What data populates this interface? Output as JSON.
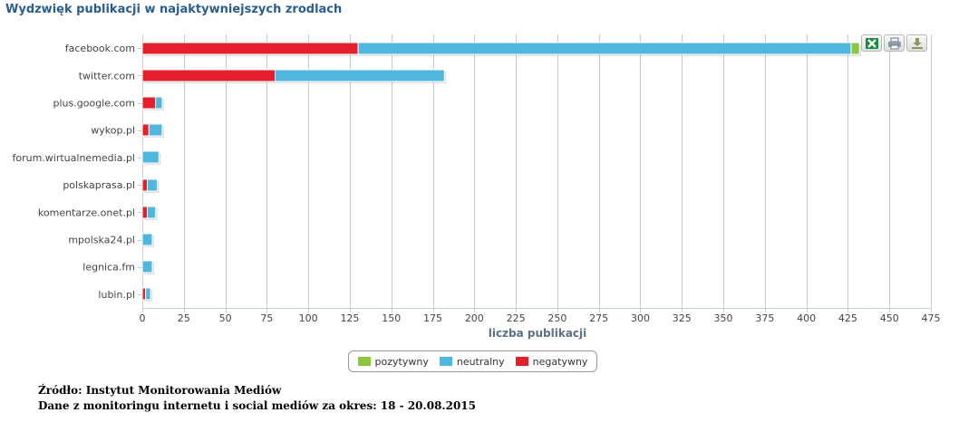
{
  "title": "Wydzwięk publikacji w najaktywniejszych zrodlach",
  "toolbar": {
    "excel_icon": "excel-icon",
    "print_icon": "print-icon",
    "download_icon": "download-icon"
  },
  "source": {
    "line1": "Źródło: Instytut Monitorowania Mediów",
    "line2": "Dane z monitoringu internetu i social mediów za okres: 18 - 20.08.2015"
  },
  "chart_data": {
    "type": "bar",
    "orientation": "horizontal",
    "stacked": true,
    "title": "Wydzwięk publikacji w najaktywniejszych zrodlach",
    "xlabel": "liczba publikacji",
    "ylabel": "",
    "xlim": [
      0,
      475
    ],
    "x_ticks": [
      0,
      25,
      50,
      75,
      100,
      125,
      150,
      175,
      200,
      225,
      250,
      275,
      300,
      325,
      350,
      375,
      400,
      425,
      450,
      475
    ],
    "grid": true,
    "legend_position": "bottom-center",
    "categories": [
      "facebook.com",
      "twitter.com",
      "plus.google.com",
      "wykop.pl",
      "forum.wirtualnemedia.pl",
      "polskaprasa.pl",
      "komentarze.onet.pl",
      "mpolska24.pl",
      "legnica.fm",
      "lubin.pl"
    ],
    "series": [
      {
        "name": "negatywny",
        "color": "#e3202c",
        "values": [
          130,
          80,
          8,
          4,
          0,
          3,
          3,
          0,
          0,
          2
        ]
      },
      {
        "name": "neutralny",
        "color": "#50b7de",
        "values": [
          297,
          102,
          4,
          8,
          10,
          6,
          5,
          6,
          6,
          3
        ]
      },
      {
        "name": "pozytywny",
        "color": "#8cc63f",
        "values": [
          5,
          0,
          0,
          0,
          0,
          0,
          0,
          0,
          0,
          0
        ]
      }
    ],
    "legend": [
      "pozytywny",
      "neutralny",
      "negatywny"
    ]
  }
}
